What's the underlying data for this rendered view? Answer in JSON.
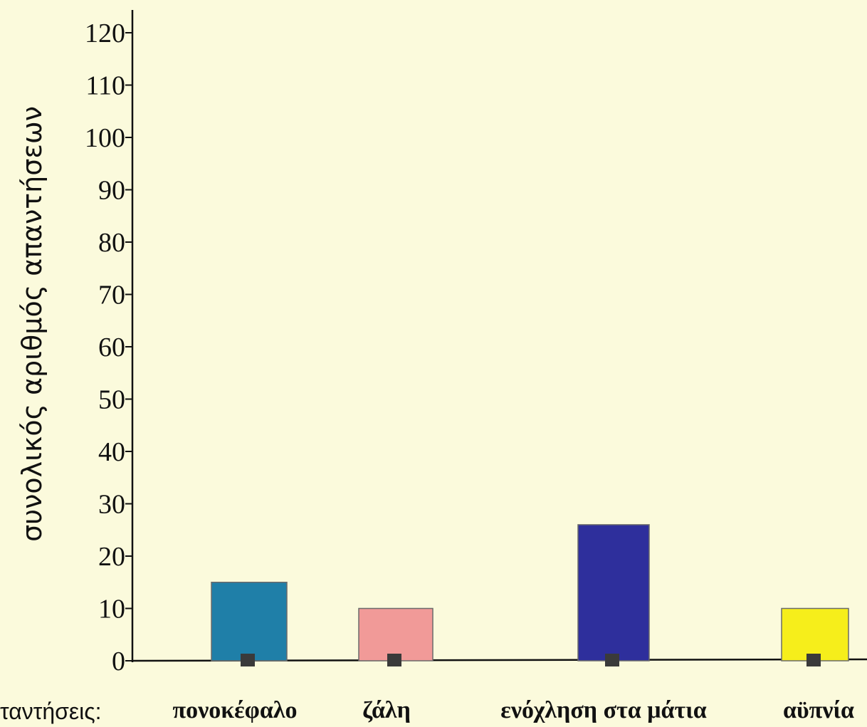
{
  "chart_data": {
    "type": "bar",
    "title": "",
    "ylabel": "συνολικός αριθμός απαντήσεων",
    "xlabel_prefix": "ταντήσεις:",
    "categories": [
      "πονοκέφαλο",
      "ζάλη",
      "ενόχληση στα μάτια",
      "αϋπνία"
    ],
    "values": [
      15,
      10,
      26,
      10
    ],
    "ylim": [
      0,
      120
    ],
    "yticks": [
      0,
      10,
      20,
      30,
      40,
      50,
      60,
      70,
      80,
      90,
      100,
      110,
      120
    ],
    "colors": [
      "#1f7fa8",
      "#f19a98",
      "#2e2f9c",
      "#f6ee1b"
    ],
    "grid": false,
    "legend": "none"
  }
}
